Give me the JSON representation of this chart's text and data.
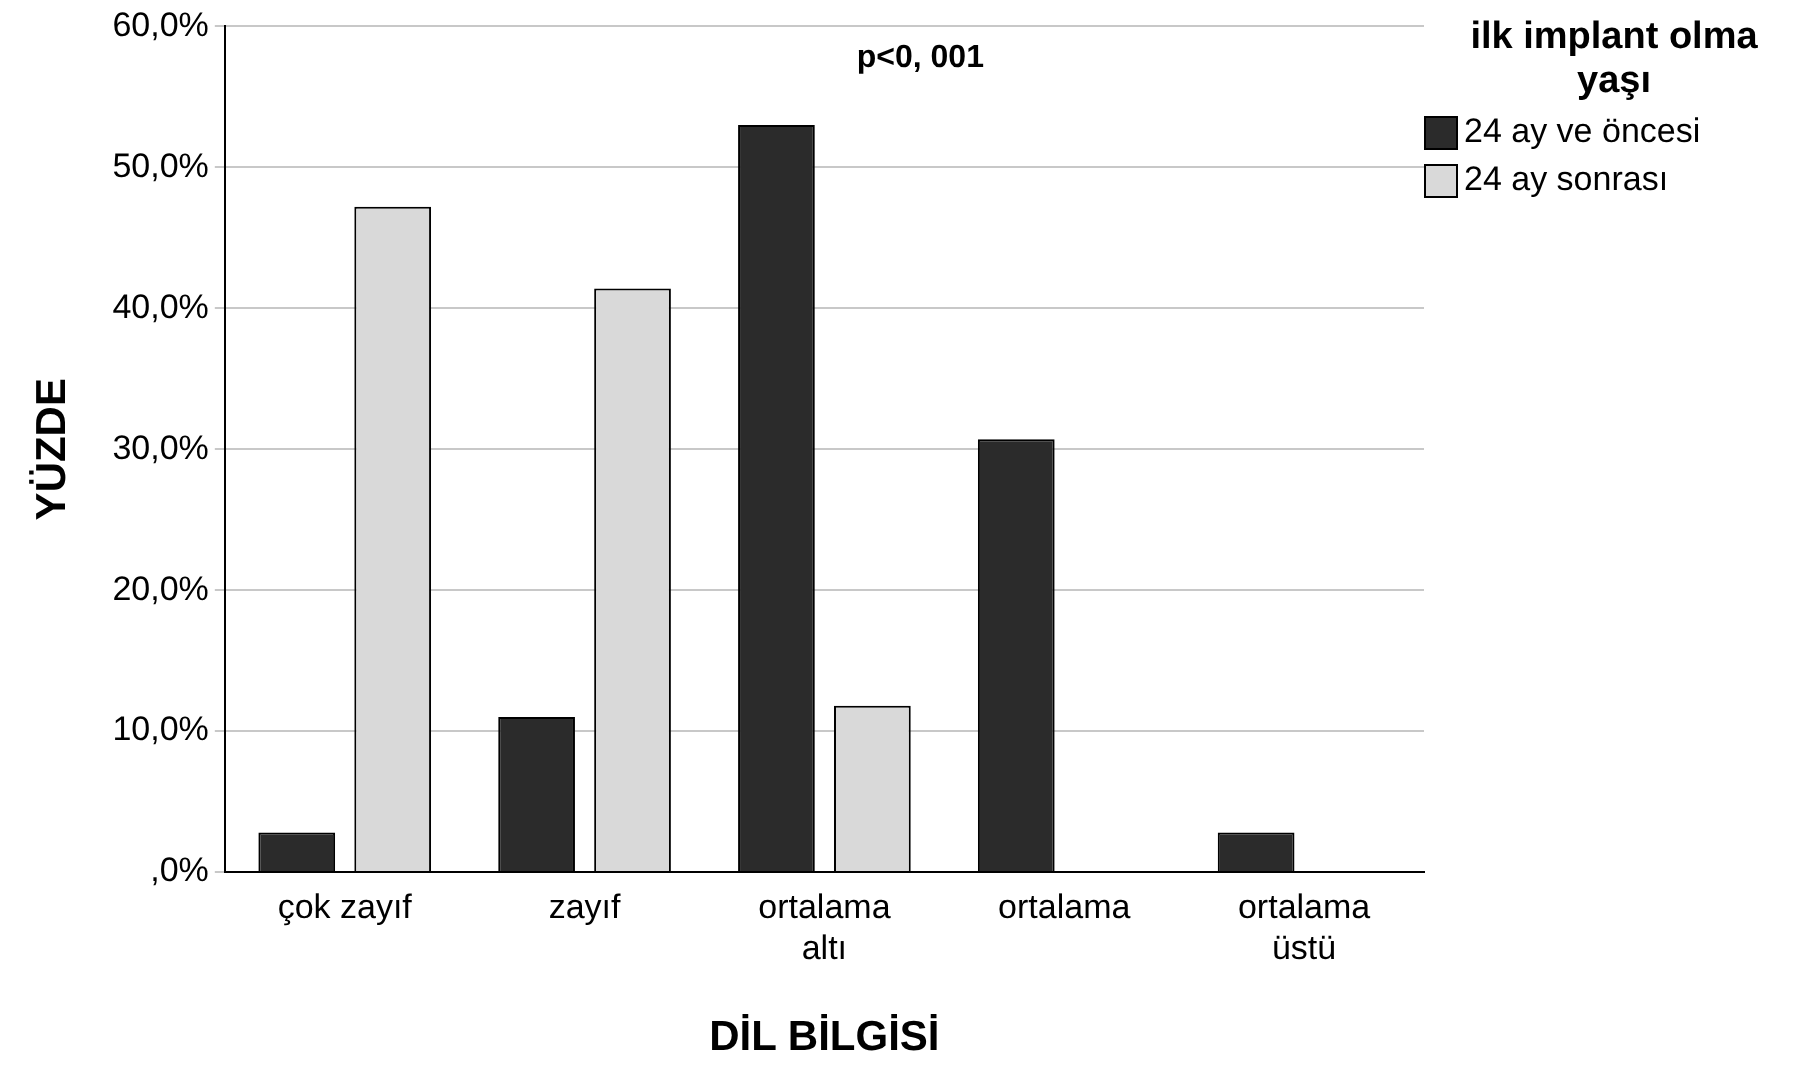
{
  "chart_data": {
    "type": "bar",
    "xlabel": "DİL BİLGİSİ",
    "ylabel": "YÜZDE",
    "legend_title": "ilk implant olma yaşı",
    "categories": [
      "çok zayıf",
      "zayıf",
      "ortalama altı",
      "ortalama",
      "ortalama üstü"
    ],
    "series": [
      {
        "name": "24 ay ve öncesi",
        "color": "#2b2b2b",
        "values": [
          2.8,
          11.0,
          53.0,
          30.7,
          2.8
        ]
      },
      {
        "name": "24 ay sonrası",
        "color": "#d9d9d9",
        "values": [
          47.2,
          41.4,
          11.8,
          0,
          0
        ]
      }
    ],
    "ylim": [
      0,
      60
    ],
    "yticks": [
      {
        "value": 0,
        "label": ",0%"
      },
      {
        "value": 10,
        "label": "10,0%"
      },
      {
        "value": 20,
        "label": "20,0%"
      },
      {
        "value": 30,
        "label": "30,0%"
      },
      {
        "value": 40,
        "label": "40,0%"
      },
      {
        "value": 50,
        "label": "50,0%"
      },
      {
        "value": 60,
        "label": "60,0%"
      }
    ],
    "grid": "y",
    "legend": "top right",
    "annotations": [
      "p<0, 001"
    ]
  }
}
